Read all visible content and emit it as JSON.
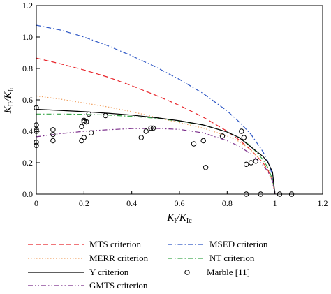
{
  "chart_data": {
    "type": "line",
    "x_axis": {
      "label_main": "K",
      "label_sub1": "I",
      "label_sep": "/K",
      "label_sub2": "Ic",
      "range": [
        0,
        1.2
      ],
      "ticks": [
        0,
        0.2,
        0.4,
        0.6,
        0.8,
        1,
        1.2
      ],
      "tick_labels": [
        "0",
        "0.2",
        "0.4",
        "0.6",
        "0.8",
        "1",
        "1.2"
      ]
    },
    "y_axis": {
      "label_main": "K",
      "label_sub1": "II",
      "label_sep": "/K",
      "label_sub2": "Ic",
      "range": [
        0,
        1.2
      ],
      "ticks": [
        0,
        0.2,
        0.4,
        0.6,
        0.8,
        1.0,
        1.2
      ],
      "tick_labels": [
        "0.0",
        "0.2",
        "0.4",
        "0.6",
        "0.8",
        "1.0",
        "1.2"
      ]
    },
    "grid": false,
    "legend_position": "bottom",
    "series": [
      {
        "name": "MTS criterion",
        "color": "#e8242a",
        "dash": "dashed",
        "x": [
          0,
          0.1,
          0.2,
          0.3,
          0.4,
          0.5,
          0.6,
          0.7,
          0.8,
          0.85,
          0.9,
          0.95,
          0.97,
          0.99,
          1.0
        ],
        "y": [
          0.866,
          0.83,
          0.79,
          0.745,
          0.69,
          0.63,
          0.565,
          0.49,
          0.4,
          0.345,
          0.28,
          0.2,
          0.155,
          0.09,
          0
        ]
      },
      {
        "name": "MSED criterion",
        "color": "#2b55c4",
        "dash": "dashdot",
        "x": [
          0,
          0.1,
          0.2,
          0.3,
          0.4,
          0.5,
          0.6,
          0.7,
          0.8,
          0.85,
          0.9,
          0.95,
          0.97,
          0.99,
          1.0
        ],
        "y": [
          1.075,
          1.045,
          1.0,
          0.945,
          0.88,
          0.81,
          0.73,
          0.64,
          0.53,
          0.46,
          0.38,
          0.27,
          0.21,
          0.12,
          0
        ]
      },
      {
        "name": "MERR criterion",
        "color": "#f0a060",
        "dash": "dotted",
        "x": [
          0,
          0.1,
          0.2,
          0.3,
          0.4,
          0.5,
          0.6,
          0.7,
          0.8,
          0.85,
          0.9,
          0.95,
          0.97,
          0.99,
          1.0
        ],
        "y": [
          0.625,
          0.605,
          0.58,
          0.555,
          0.525,
          0.49,
          0.455,
          0.42,
          0.37,
          0.335,
          0.28,
          0.2,
          0.15,
          0.085,
          0
        ]
      },
      {
        "name": "NT criterion",
        "color": "#3aa84a",
        "dash": "dashdot",
        "x": [
          0,
          0.1,
          0.2,
          0.3,
          0.4,
          0.5,
          0.6,
          0.7,
          0.8,
          0.85,
          0.9,
          0.95,
          0.97,
          0.99,
          1.0
        ],
        "y": [
          0.51,
          0.51,
          0.508,
          0.503,
          0.495,
          0.483,
          0.465,
          0.44,
          0.395,
          0.36,
          0.305,
          0.22,
          0.17,
          0.095,
          0
        ]
      },
      {
        "name": "Y criterion",
        "color": "#000000",
        "dash": "solid",
        "x": [
          0,
          0.1,
          0.2,
          0.3,
          0.4,
          0.5,
          0.6,
          0.7,
          0.8,
          0.85,
          0.9,
          0.95,
          0.97,
          0.99,
          1.0
        ],
        "y": [
          0.54,
          0.533,
          0.525,
          0.515,
          0.503,
          0.487,
          0.467,
          0.44,
          0.395,
          0.36,
          0.3,
          0.24,
          0.205,
          0.14,
          0
        ]
      },
      {
        "name": "Marble [11]",
        "color": "#000000",
        "marker": "open-circle",
        "x": [
          0,
          0,
          0,
          0,
          0,
          0,
          0.07,
          0.07,
          0.07,
          0.19,
          0.19,
          0.2,
          0.2,
          0.2,
          0.21,
          0.22,
          0.23,
          0.29,
          0.44,
          0.46,
          0.48,
          0.49,
          0.66,
          0.7,
          0.71,
          0.78,
          0.86,
          0.87,
          0.88,
          0.9,
          0.92,
          0.88,
          0.94,
          1.02,
          1.07
        ],
        "y": [
          0.55,
          0.44,
          0.41,
          0.4,
          0.33,
          0.31,
          0.41,
          0.38,
          0.34,
          0.34,
          0.43,
          0.46,
          0.47,
          0.36,
          0.46,
          0.51,
          0.39,
          0.5,
          0.36,
          0.4,
          0.42,
          0.42,
          0.32,
          0.34,
          0.17,
          0.37,
          0.4,
          0.36,
          0.19,
          0.2,
          0.21,
          0,
          0,
          0,
          0
        ]
      },
      {
        "name": "GMTS criterion",
        "color": "#7a2c8a",
        "dash": "dashdotdot",
        "x": [
          0,
          0.1,
          0.2,
          0.3,
          0.4,
          0.5,
          0.6,
          0.7,
          0.8,
          0.85,
          0.9,
          0.95,
          0.97,
          0.99,
          1.0
        ],
        "y": [
          0.365,
          0.385,
          0.4,
          0.41,
          0.417,
          0.418,
          0.412,
          0.39,
          0.34,
          0.305,
          0.255,
          0.185,
          0.145,
          0.08,
          0
        ]
      }
    ],
    "legend": [
      {
        "series": 0,
        "label": "MTS criterion"
      },
      {
        "series": 1,
        "label": "MSED criterion"
      },
      {
        "series": 2,
        "label": "MERR criterion"
      },
      {
        "series": 3,
        "label": "NT criterion"
      },
      {
        "series": 4,
        "label": "Y criterion"
      },
      {
        "series": 5,
        "label": "Marble [11]"
      },
      {
        "series": 6,
        "label": "GMTS criterion"
      }
    ]
  }
}
